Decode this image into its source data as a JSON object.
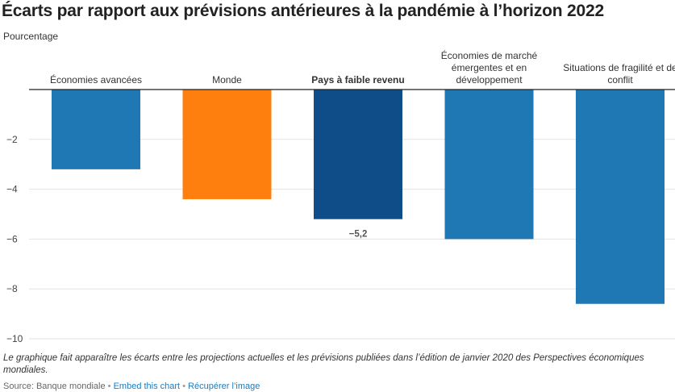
{
  "header": {
    "title": "Écarts par rapport aux prévisions antérieures à la pandémie à l’horizon 2022",
    "subtitle": "Pourcentage"
  },
  "note": "Le graphique fait apparaître les écarts entre les projections actuelles et les prévisions publiées dans l’édition de janvier 2020 des Perspectives économiques mondiales.",
  "footer": {
    "source": "Source: Banque mondiale",
    "separator": "•",
    "embed_link": "Embed this chart",
    "download_link": "Récupérer l’image"
  },
  "colors": {
    "blue": "#1f77b4",
    "orange": "#ff7f0e",
    "dark_blue": "#0f4d88",
    "grid": "#e3e3e3",
    "axis": "#222222"
  },
  "chart_data": {
    "type": "bar",
    "ylim": [
      -10,
      0
    ],
    "yticks": [
      -2,
      -4,
      -6,
      -8,
      -10
    ],
    "ytick_labels": [
      "−2",
      "−4",
      "−6",
      "−8",
      "−10"
    ],
    "grid": true,
    "categories": [
      [
        "Économies avancées"
      ],
      [
        "Monde"
      ],
      [
        "Pays à faible revenu"
      ],
      [
        "Économies de marché",
        "émergentes et en",
        "développement"
      ],
      [
        "Situations de fragilité et de",
        "conflit"
      ]
    ],
    "values": [
      -3.2,
      -4.4,
      -5.2,
      -6.0,
      -8.6
    ],
    "bar_colors": [
      "#1f77b4",
      "#ff7f0e",
      "#0f4d88",
      "#1f77b4",
      "#1f77b4"
    ],
    "bold_category": 2,
    "data_labels": [
      "",
      "",
      "−5,2",
      "",
      ""
    ]
  }
}
